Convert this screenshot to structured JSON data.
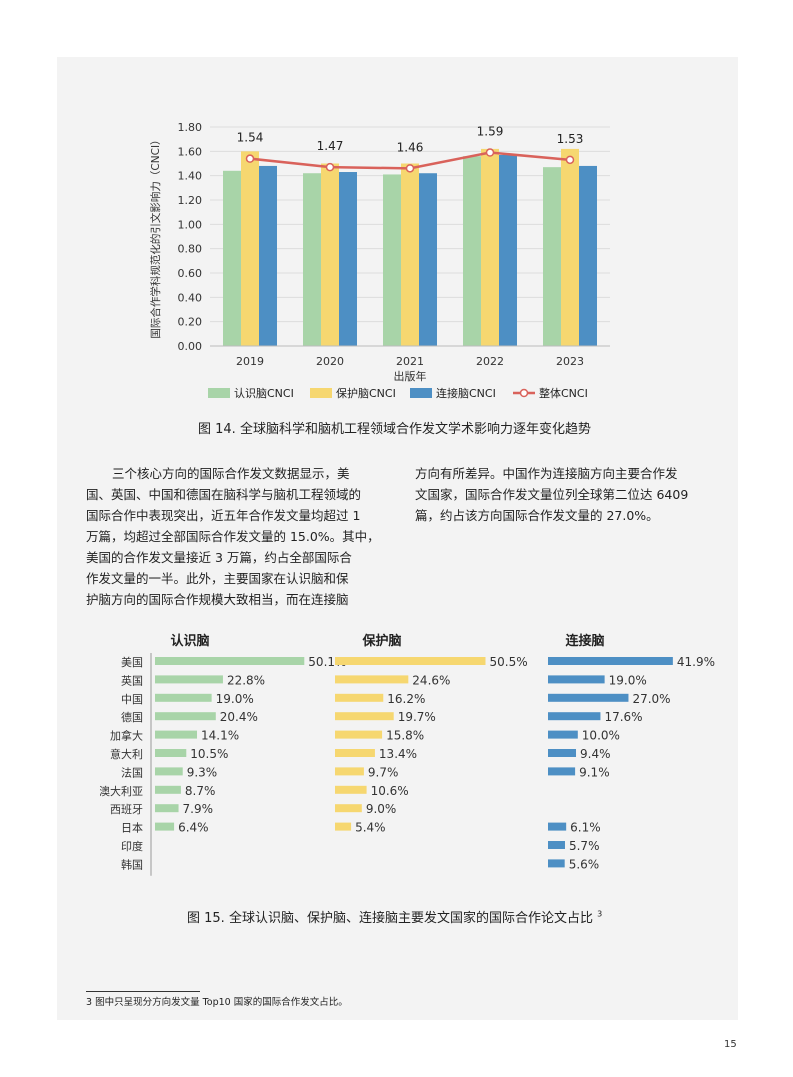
{
  "chart_data": [
    {
      "type": "bar",
      "categories": [
        "2019",
        "2020",
        "2021",
        "2022",
        "2023"
      ],
      "series": [
        {
          "name": "认识脑CNCI",
          "values": [
            1.44,
            1.42,
            1.41,
            1.56,
            1.47
          ],
          "color": "#a8d4a8"
        },
        {
          "name": "保护脑CNCI",
          "values": [
            1.6,
            1.5,
            1.5,
            1.62,
            1.62
          ],
          "color": "#f6d770"
        },
        {
          "name": "连接脑CNCI",
          "values": [
            1.48,
            1.43,
            1.42,
            1.57,
            1.48
          ],
          "color": "#4d8fc4"
        },
        {
          "name": "整体CNCI",
          "type": "line",
          "values": [
            1.54,
            1.47,
            1.46,
            1.59,
            1.53
          ],
          "color": "#d9625b"
        }
      ],
      "yticks": [
        "0.00",
        "0.20",
        "0.40",
        "0.60",
        "0.80",
        "1.00",
        "1.20",
        "1.40",
        "1.60",
        "1.80"
      ],
      "ylim": [
        0,
        1.8
      ],
      "xlabel": "出版年",
      "ylabel": "国际合作学科规范化的引文影响力（CNCI）",
      "legend": "bottom",
      "grid": true,
      "data_labels": [
        "1.54",
        "1.47",
        "1.46",
        "1.59",
        "1.53"
      ]
    },
    {
      "type": "bar",
      "orientation": "horizontal",
      "categories": [
        "美国",
        "英国",
        "中国",
        "德国",
        "加拿大",
        "意大利",
        "法国",
        "澳大利亚",
        "西班牙",
        "日本",
        "印度",
        "韩国"
      ],
      "panels": [
        {
          "title": "认识脑",
          "color": "#a8d4a8",
          "values": [
            50.1,
            22.8,
            19.0,
            20.4,
            14.1,
            10.5,
            9.3,
            8.7,
            7.9,
            6.4,
            null,
            null
          ],
          "labels": [
            "50.1%",
            "22.8%",
            "19.0%",
            "20.4%",
            "14.1%",
            "10.5%",
            "9.3%",
            "8.7%",
            "7.9%",
            "6.4%",
            "",
            ""
          ]
        },
        {
          "title": "保护脑",
          "color": "#f6d770",
          "values": [
            50.5,
            24.6,
            16.2,
            19.7,
            15.8,
            13.4,
            9.7,
            10.6,
            9.0,
            5.4,
            null,
            null
          ],
          "labels": [
            "50.5%",
            "24.6%",
            "16.2%",
            "19.7%",
            "15.8%",
            "13.4%",
            "9.7%",
            "10.6%",
            "9.0%",
            "5.4%",
            "",
            ""
          ]
        },
        {
          "title": "连接脑",
          "color": "#4d8fc4",
          "values": [
            41.9,
            19.0,
            27.0,
            17.6,
            10.0,
            9.4,
            9.1,
            null,
            null,
            6.1,
            5.7,
            5.6
          ],
          "labels": [
            "41.9%",
            "19.0%",
            "27.0%",
            "17.6%",
            "10.0%",
            "9.4%",
            "9.1%",
            "",
            "",
            "6.1%",
            "5.7%",
            "5.6%"
          ]
        }
      ]
    }
  ],
  "captions": {
    "fig14": "图 14. 全球脑科学和脑机工程领域合作发文学术影响力逐年变化趋势",
    "fig15": "图 15. 全球认识脑、保护脑、连接脑主要发文国家的国际合作论文占比",
    "fig15_sup": "3"
  },
  "paragraph_left": [
    "三个核心方向的国际合作发文数据显示，美",
    "国、英国、中国和德国在脑科学与脑机工程领域的",
    "国际合作中表现突出，近五年合作发文量均超过 1",
    "万篇，均超过全部国际合作发文量的 15.0%。其中，",
    "美国的合作发文量接近 3 万篇，约占全部国际合",
    "作发文量的一半。此外，主要国家在认识脑和保",
    "护脑方向的国际合作规模大致相当，而在连接脑"
  ],
  "paragraph_right": [
    "方向有所差异。中国作为连接脑方向主要合作发",
    "文国家，国际合作发文量位列全球第二位达 6409",
    "篇，约占该方向国际合作发文量的 27.0%。"
  ],
  "footnote": "3    图中只呈现分方向发文量 Top10 国家的国际合作发文占比。",
  "page_number": "15"
}
